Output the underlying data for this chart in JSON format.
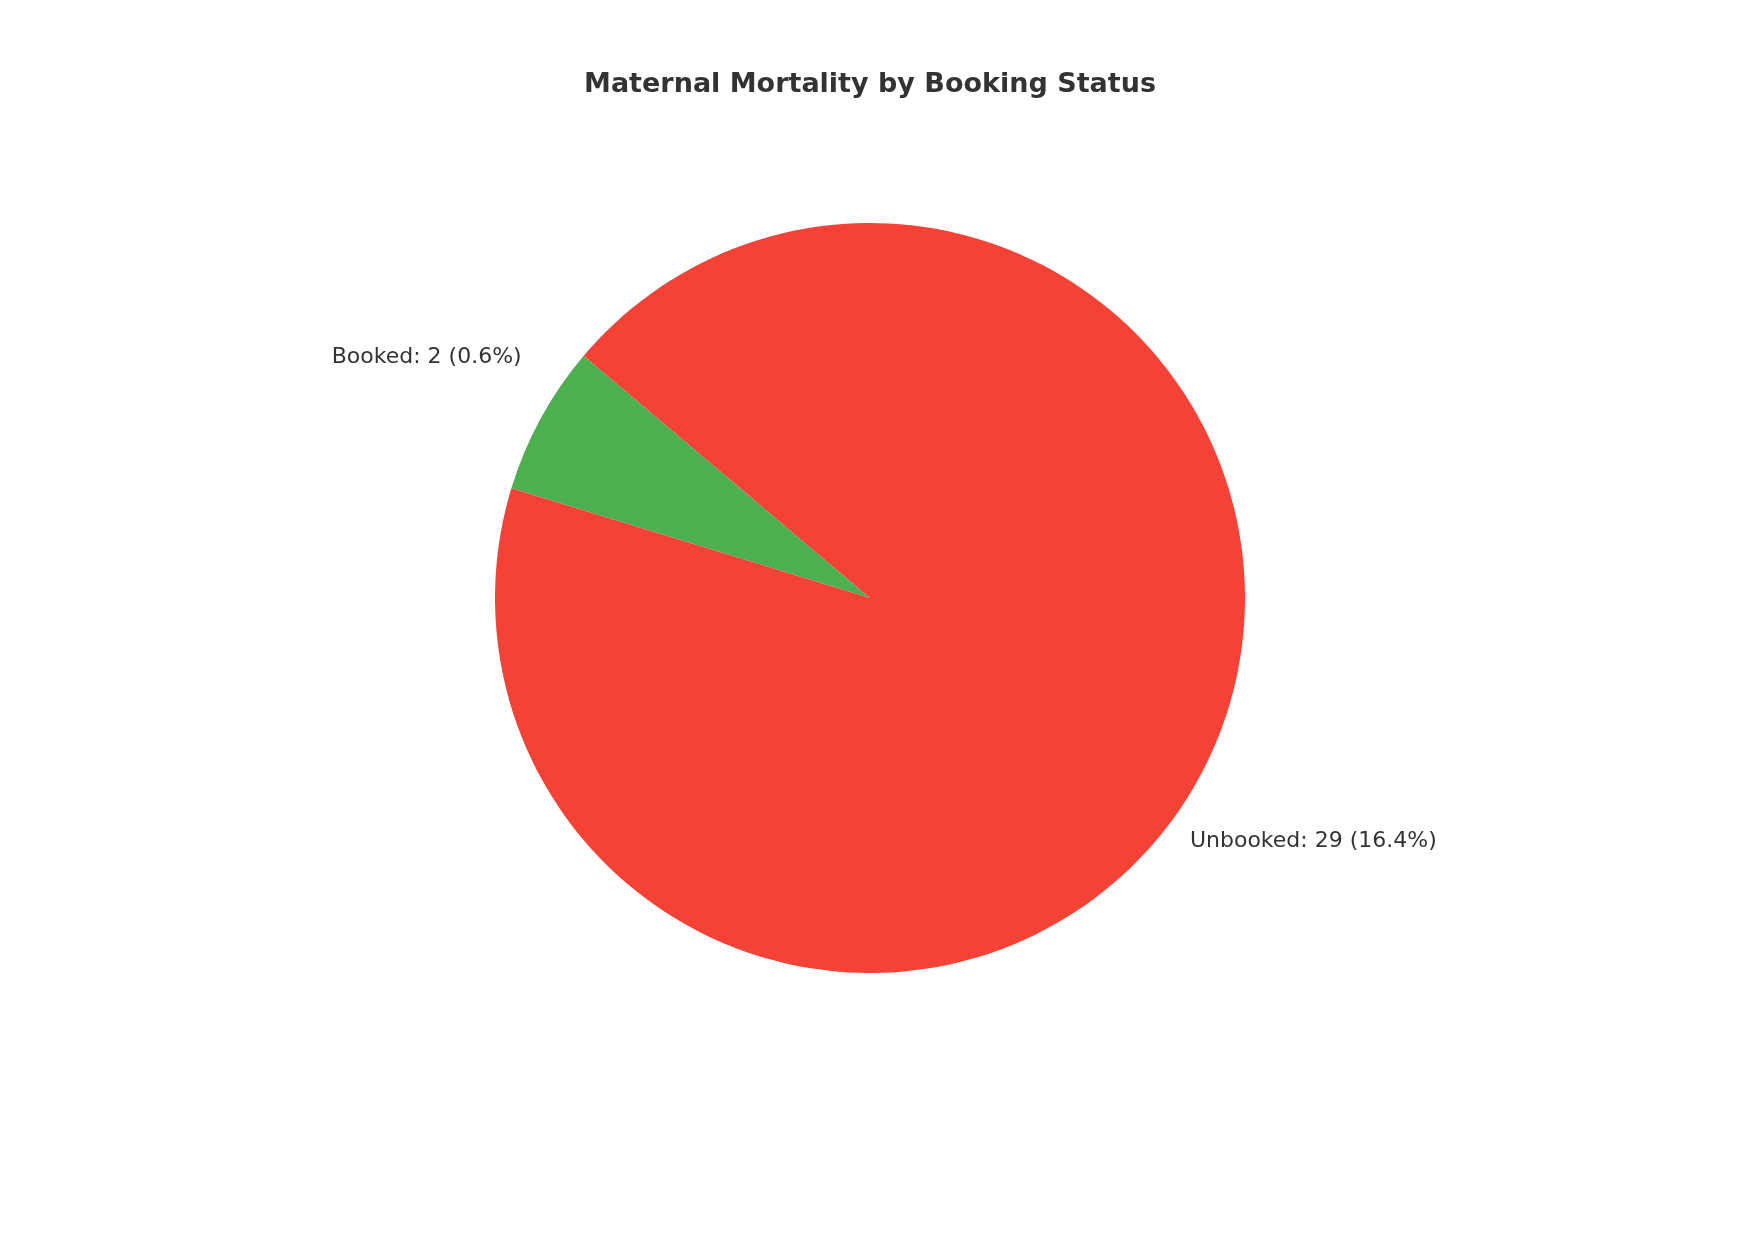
{
  "chart_data": {
    "type": "pie",
    "title": "Maternal Mortality by Booking Status",
    "categories": [
      "Booked: 2 (0.6%)",
      "Unbooked: 29 (16.4%)"
    ],
    "values": [
      2,
      29
    ],
    "colors": [
      "#4caf50",
      "#f44336"
    ],
    "legend": false
  }
}
